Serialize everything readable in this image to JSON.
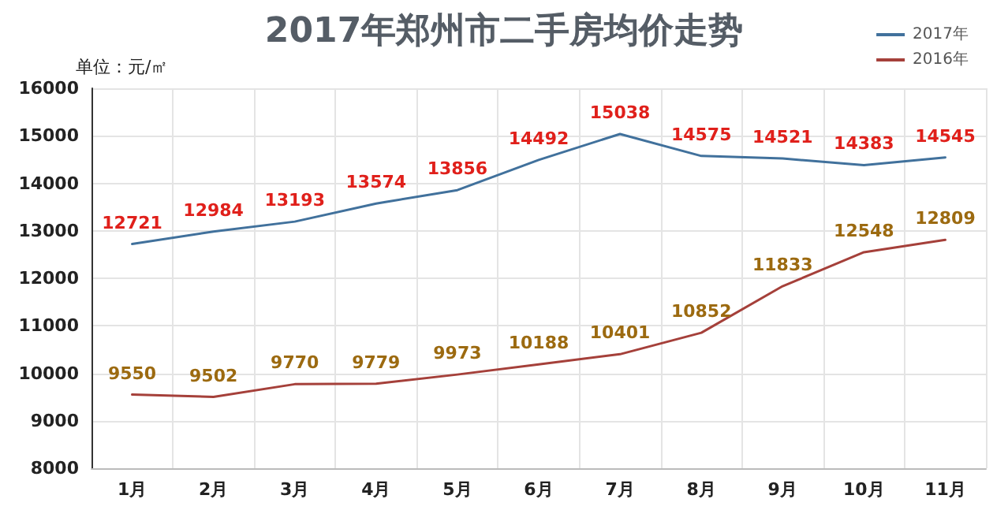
{
  "chart_data": {
    "type": "line",
    "title": "2017年郑州市二手房均价走势",
    "ylabel": "单位：元/㎡",
    "categories": [
      "1月",
      "2月",
      "3月",
      "4月",
      "5月",
      "6月",
      "7月",
      "8月",
      "9月",
      "10月",
      "11月"
    ],
    "series": [
      {
        "name": "2017年",
        "color": "#41719c",
        "values": [
          12721,
          12984,
          13193,
          13574,
          13856,
          14492,
          15038,
          14575,
          14521,
          14383,
          14545
        ]
      },
      {
        "name": "2016年",
        "color": "#a5403a",
        "values": [
          9550,
          9502,
          9770,
          9779,
          9973,
          10188,
          10401,
          10852,
          11833,
          12548,
          12809
        ]
      }
    ],
    "ylim": [
      8000,
      16000
    ],
    "yticks": [
      8000,
      9000,
      10000,
      11000,
      12000,
      13000,
      14000,
      15000,
      16000
    ],
    "grid": true,
    "legend": "top right",
    "data_labels": true,
    "marker": "none",
    "line_style": "solid"
  }
}
